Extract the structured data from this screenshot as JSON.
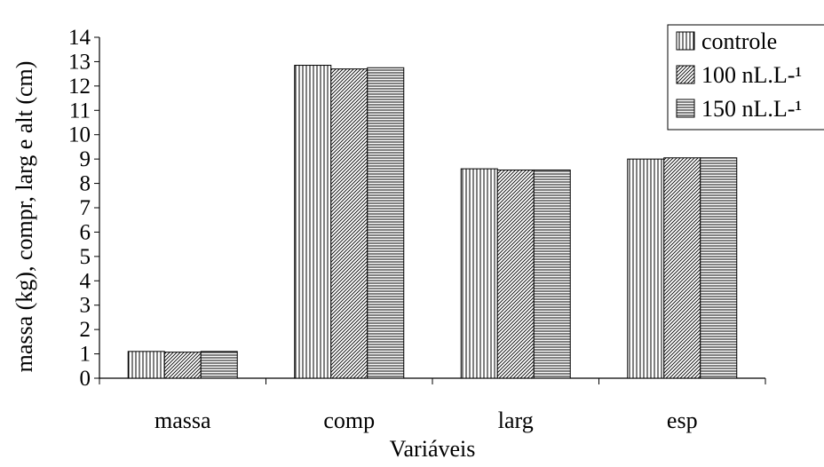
{
  "chart_data": {
    "type": "bar",
    "title": "",
    "xlabel": "Variáveis",
    "ylabel": "massa (kg), compr, larg e alt (cm)",
    "categories": [
      "massa",
      "comp",
      "larg",
      "esp"
    ],
    "ylim": [
      0,
      14
    ],
    "yticks": [
      0,
      1,
      2,
      3,
      4,
      5,
      6,
      7,
      8,
      9,
      10,
      11,
      12,
      13,
      14
    ],
    "grid": false,
    "legend_position": "top-right",
    "series": [
      {
        "name": "controle",
        "pattern": "vertical-lines",
        "values": [
          1.1,
          12.85,
          8.6,
          9.0
        ]
      },
      {
        "name": "100 nL.L-¹",
        "pattern": "diagonal-lines",
        "values": [
          1.07,
          12.7,
          8.55,
          9.05
        ]
      },
      {
        "name": "150 nL.L-¹",
        "pattern": "horizontal-lines",
        "values": [
          1.1,
          12.75,
          8.55,
          9.05
        ]
      }
    ]
  }
}
